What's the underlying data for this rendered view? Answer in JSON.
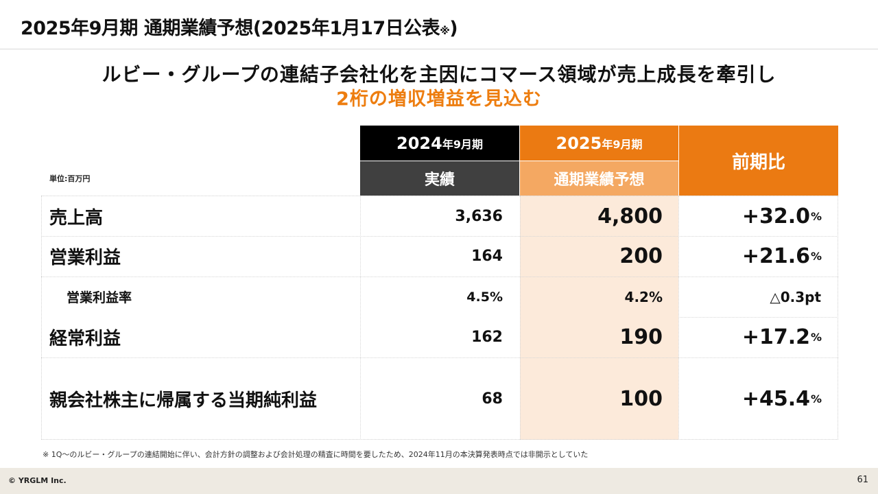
{
  "header": {
    "title_main": "2025年9月期 通期業績予想(2025年1月17日公表",
    "title_note": "※",
    "title_close": ")"
  },
  "headline": {
    "line1": "ルビー・グループの連結子会社化を主因にコマース領域が売上成長を牽引し",
    "line2": "2桁の増収増益を見込む"
  },
  "unit": "単位:百万円",
  "columns": {
    "prev_year": {
      "year": "2024",
      "term": "年9月期",
      "sub": "実績"
    },
    "forecast": {
      "year": "2025",
      "term": "年9月期",
      "sub": "通期業績予想"
    },
    "ratio": {
      "label": "前期比"
    }
  },
  "rows": [
    {
      "label": "売上高",
      "actual": "3,636",
      "forecast": "4,800",
      "ratio": "+32.0",
      "ratio_unit": "%"
    },
    {
      "label": "営業利益",
      "actual": "164",
      "forecast": "200",
      "ratio": "+21.6",
      "ratio_unit": "%"
    },
    {
      "label": "営業利益率",
      "actual": "4.5%",
      "forecast": "4.2%",
      "ratio": "△0.3pt",
      "ratio_unit": ""
    },
    {
      "label": "経常利益",
      "actual": "162",
      "forecast": "190",
      "ratio": "+17.2",
      "ratio_unit": "%"
    },
    {
      "label": "親会社株主に帰属する当期純利益",
      "actual": "68",
      "forecast": "100",
      "ratio": "+45.4",
      "ratio_unit": "%"
    }
  ],
  "footnote": "※ 1Q〜のルビー・グループの連結開始に伴い、会計方針の調整および会計処理の精査に時間を要したため、2024年11月の本決算発表時点では非開示としていた",
  "footer": {
    "copyright": "© YRGLM Inc.",
    "page": "61"
  },
  "colors": {
    "accent": "#EB7A12",
    "accent_light": "#F4A862",
    "forecast_bg": "#FCEADA",
    "dark": "#000000",
    "dark_gray": "#404040"
  }
}
